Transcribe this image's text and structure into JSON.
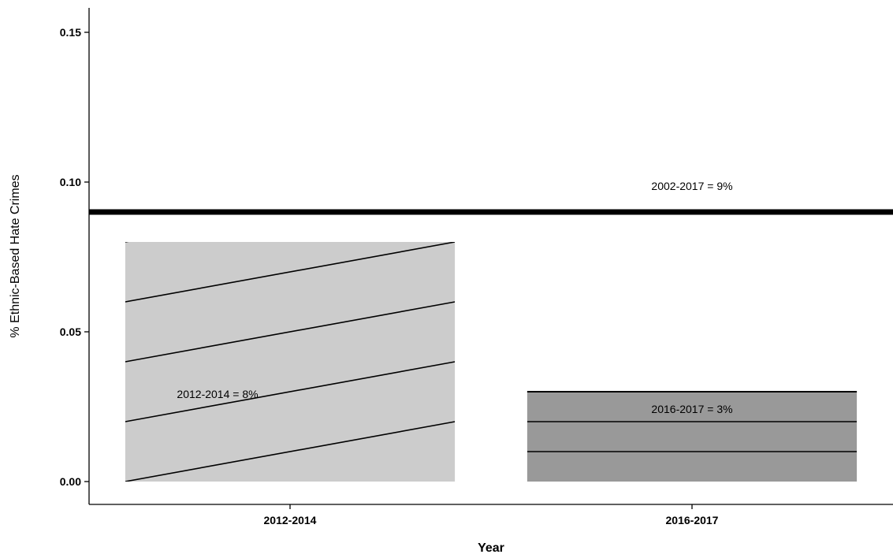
{
  "chart_data": {
    "type": "bar",
    "categories": [
      "2012-2014",
      "2016-2017"
    ],
    "values": [
      0.08,
      0.03
    ],
    "xlabel": "Year",
    "ylabel": "% Ethnic-Based Hate Crimes",
    "ylim": [
      0,
      0.15
    ],
    "yticks": [
      "0.00",
      "0.05",
      "0.10",
      "0.15"
    ],
    "grid": false,
    "bar_colors": [
      "#cccccc",
      "#999999"
    ],
    "bar_patterns": [
      "diagonal-stripes",
      "horizontal-stripes"
    ],
    "reference_line": {
      "value": 0.09,
      "label": "2002-2017 = 9%"
    },
    "annotations": [
      {
        "category": "2012-2014",
        "label": "2012-2014 = 8%",
        "y": 0.029
      },
      {
        "category": "2016-2017",
        "label": "2016-2017 = 3%",
        "y": 0.024
      }
    ]
  }
}
